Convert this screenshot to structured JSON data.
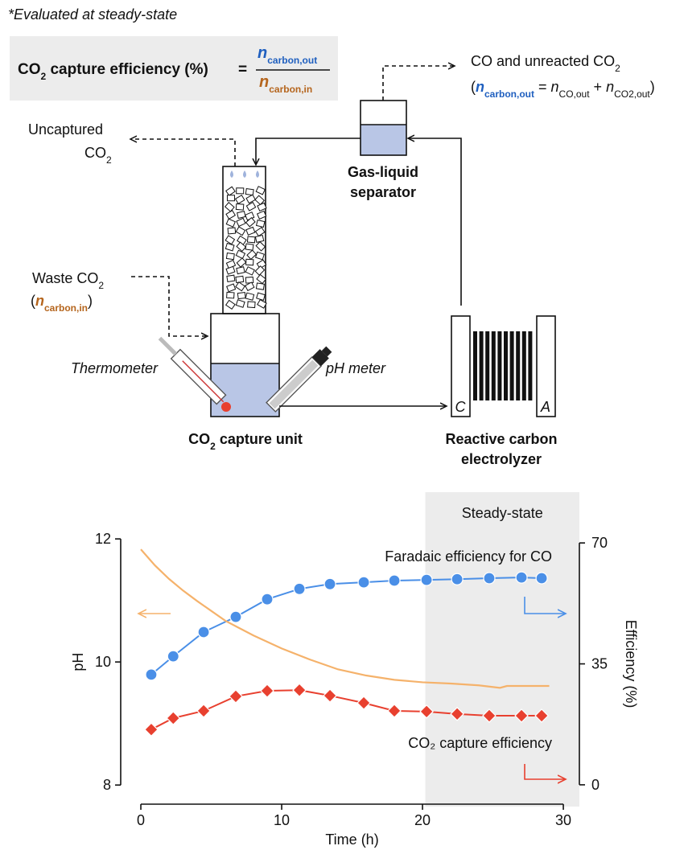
{
  "diagram": {
    "note": "*Evaluated at steady-state",
    "formula": {
      "lhs": [
        "CO",
        "2",
        " capture efficiency (%)"
      ],
      "equals": "=",
      "numerator": [
        "n",
        "carbon,out"
      ],
      "denominator": [
        "n",
        "carbon,in"
      ]
    },
    "outlet_label": {
      "line1": [
        "CO and unreacted CO",
        "2"
      ],
      "line2": [
        "(",
        "n",
        "carbon,out",
        " = ",
        "n",
        "CO,out",
        " + ",
        "n",
        "CO2,out",
        ")"
      ]
    },
    "uncaptured": [
      "Uncaptured",
      "CO",
      "2"
    ],
    "separator": [
      "Gas-liquid",
      "separator"
    ],
    "waste": {
      "line1": [
        "Waste CO",
        "2"
      ],
      "line2": [
        "(",
        "n",
        "carbon,in",
        ")"
      ]
    },
    "thermometer": "Thermometer",
    "ph_meter": "pH meter",
    "capture_unit": [
      "CO",
      "2",
      " capture unit"
    ],
    "electrolyzer": [
      "Reactive carbon",
      "electrolyzer"
    ],
    "cathode": "C",
    "anode": "A"
  },
  "chart_data": {
    "type": "line",
    "xlabel": "Time (h)",
    "ylabel": "pH",
    "y2label": "Efficiency (%)",
    "xlim": [
      -1.43,
      31.14
    ],
    "xticks": [
      0,
      10,
      20,
      30
    ],
    "ylim": [
      7.65,
      12.76
    ],
    "yticks": [
      8,
      10,
      12
    ],
    "y2lim": [
      -6.3,
      84.7
    ],
    "y2ticks": [
      0,
      35,
      70
    ],
    "shaded_region": {
      "x": [
        20.2,
        31.14
      ],
      "label": "Steady-state"
    },
    "series": [
      {
        "name": "Faradaic efficiency for CO",
        "color": "#4a8fe7",
        "axis": "y2",
        "marker": "circle",
        "x": [
          0.74,
          2.3,
          4.46,
          6.74,
          8.97,
          11.26,
          13.43,
          15.83,
          18,
          20.29,
          22.46,
          24.74,
          27.03,
          28.46
        ],
        "values": [
          31.9,
          37.2,
          44.2,
          48.6,
          53.7,
          56.7,
          58.1,
          58.6,
          59.1,
          59.3,
          59.5,
          59.8,
          60,
          59.8
        ]
      },
      {
        "name": "CO₂ capture efficiency",
        "color": "#e8402f",
        "axis": "y2",
        "marker": "diamond",
        "x": [
          0.74,
          2.3,
          4.46,
          6.74,
          8.97,
          11.26,
          13.43,
          15.83,
          18,
          20.29,
          22.46,
          24.74,
          27.03,
          28.46
        ],
        "values": [
          16,
          19.3,
          21.4,
          25.6,
          27.2,
          27.4,
          25.8,
          23.7,
          21.4,
          21.2,
          20.5,
          20,
          20,
          20
        ]
      },
      {
        "color": "#f5b26b",
        "axis": "y",
        "x": [
          0,
          0.5,
          1,
          2,
          3,
          4,
          5,
          6,
          7,
          8,
          10,
          12,
          14,
          16,
          18,
          20,
          22,
          24,
          25.5,
          26,
          28,
          29
        ],
        "values": [
          11.83,
          11.7,
          11.57,
          11.35,
          11.16,
          10.99,
          10.83,
          10.67,
          10.55,
          10.43,
          10.22,
          10.04,
          9.88,
          9.78,
          9.71,
          9.67,
          9.65,
          9.62,
          9.58,
          9.61,
          9.61,
          9.61
        ]
      }
    ]
  }
}
